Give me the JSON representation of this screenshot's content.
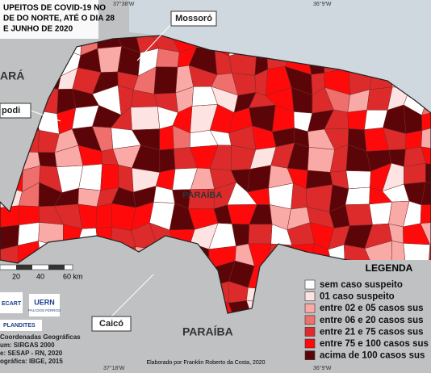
{
  "title": [
    "UPEITOS DE COVID-19 NO",
    "DE DO NORTE, ATÉ O DIA 28",
    "E JUNHO DE 2020"
  ],
  "coordinates": {
    "top_left": "37°38'W",
    "top_right": "36°9'W",
    "bottom_left": "37°18'W",
    "bottom_right": "36°9'W"
  },
  "places": {
    "ceara": "ARÁ",
    "mossoro": "Mossoró",
    "apodi": "podi",
    "caico": "Caicó",
    "paraiba_mid": "PARAÍBA",
    "paraiba_bottom": "PARAÍBA"
  },
  "scale": [
    "20",
    "40",
    "60 km"
  ],
  "legend": {
    "title": "LEGENDA",
    "items": [
      {
        "label": "sem caso suspeito",
        "color": "#ffffff"
      },
      {
        "label": "01 caso suspeito",
        "color": "#fde3e1"
      },
      {
        "label": "entre 02 e 05 casos sus",
        "color": "#f9a9a6"
      },
      {
        "label": "entre 06 e 20 casos sus",
        "color": "#ef6f6c"
      },
      {
        "label": "entre 21 e 75 casos sus",
        "color": "#dd2b2b"
      },
      {
        "label": "entre 75 e 100 casos sus",
        "color": "#ff0a0a"
      },
      {
        "label": "acima de 100 casos sus",
        "color": "#5c0508"
      }
    ]
  },
  "logos": [
    "ECART",
    "UERN",
    "PAU DOS FERROS",
    "PLANDITES"
  ],
  "info": [
    "Coordenadas Geográficas",
    "um: SIRGAS 2000",
    "e: SESAP - RN, 2020",
    "ográfica: IBGE, 2015"
  ],
  "credit": "Elaborado por Franklin Roberto da Costa, 2020"
}
